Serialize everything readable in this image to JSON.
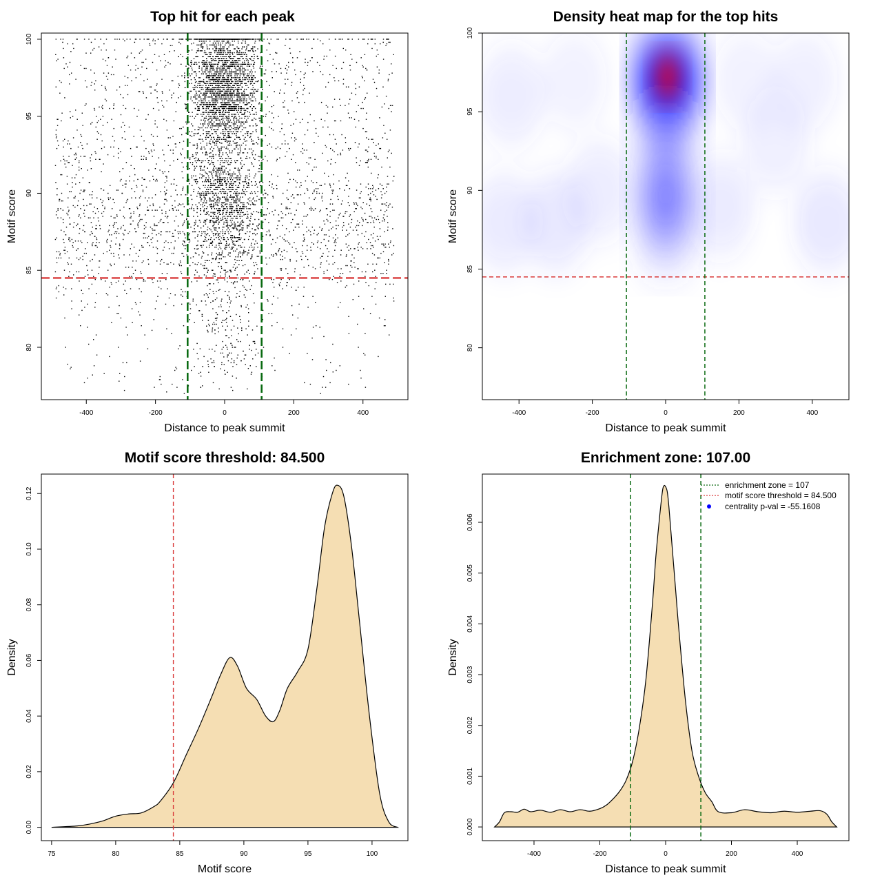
{
  "chart_data": [
    {
      "type": "scatter",
      "title": "Top hit for each peak",
      "xlabel": "Distance to peak summit",
      "ylabel": "Motif score",
      "xlim": [
        -530,
        530
      ],
      "ylim": [
        76.6,
        100.4
      ],
      "x_ticks": [
        "-400",
        "-200",
        "0",
        "200",
        "400"
      ],
      "y_ticks": [
        "80",
        "85",
        "90",
        "95",
        "100"
      ],
      "hline": 84.5,
      "vlines": [
        -107,
        107
      ],
      "hline_color": "#d93a3a",
      "vline_color": "#0a6b12",
      "point_color": "#000000",
      "points_summary": {
        "approx_count": 7000,
        "x_range": [
          -490,
          490
        ],
        "y_range": [
          77,
          100
        ],
        "dense_region": "between -107 and 107, scores 86 to 100"
      }
    },
    {
      "type": "heatmap",
      "title": "Density heat map for the top hits",
      "xlabel": "Distance to peak summit",
      "ylabel": "Motif score",
      "xlim": [
        -500,
        500
      ],
      "ylim": [
        76.7,
        100
      ],
      "x_ticks": [
        "-400",
        "-200",
        "0",
        "200",
        "400"
      ],
      "y_ticks": [
        "80",
        "85",
        "90",
        "95",
        "100"
      ],
      "hline": 84.5,
      "vlines": [
        -107,
        107
      ],
      "colors": [
        "#ffffff",
        "#0000ff",
        "#ff0000"
      ],
      "peak": {
        "x": 5,
        "y": 97.2
      }
    },
    {
      "type": "area",
      "title": "Motif score threshold: 84.500",
      "xlabel": "Motif score",
      "ylabel": "Density",
      "xlim": [
        74.2,
        102.8
      ],
      "ylim": [
        -0.0048,
        0.127
      ],
      "x_ticks": [
        "75",
        "80",
        "85",
        "90",
        "95",
        "100"
      ],
      "y_ticks": [
        "0.00",
        "0.02",
        "0.04",
        "0.06",
        "0.08",
        "0.10",
        "0.12"
      ],
      "vline": 84.5,
      "fill": "#f5deb3",
      "x": [
        75,
        77,
        78,
        79,
        80,
        81,
        82,
        83,
        83.5,
        84.5,
        85.5,
        86.5,
        87.5,
        88.2,
        88.9,
        89.5,
        90.2,
        91,
        91.7,
        92.3,
        92.8,
        93.4,
        94.2,
        95,
        95.7,
        96.3,
        96.9,
        97.3,
        97.8,
        98.4,
        99,
        99.8,
        100.6,
        101.3,
        102
      ],
      "y": [
        0,
        0.0005,
        0.0012,
        0.0023,
        0.004,
        0.0048,
        0.0052,
        0.0075,
        0.0095,
        0.016,
        0.026,
        0.036,
        0.047,
        0.055,
        0.061,
        0.058,
        0.05,
        0.046,
        0.04,
        0.038,
        0.042,
        0.05,
        0.056,
        0.064,
        0.086,
        0.108,
        0.12,
        0.123,
        0.119,
        0.101,
        0.075,
        0.04,
        0.012,
        0.002,
        0
      ]
    },
    {
      "type": "area",
      "title": "Enrichment zone: 107.00",
      "xlabel": "Distance to peak summit",
      "ylabel": "Density",
      "xlim": [
        -557,
        557
      ],
      "ylim": [
        -0.00027,
        0.00695
      ],
      "x_ticks": [
        "-400",
        "-200",
        "0",
        "200",
        "400"
      ],
      "y_ticks": [
        "0.000",
        "0.001",
        "0.002",
        "0.003",
        "0.004",
        "0.005",
        "0.006"
      ],
      "vlines": [
        -107,
        107
      ],
      "fill": "#f5deb3",
      "x": [
        -520,
        -505,
        -490,
        -470,
        -450,
        -430,
        -410,
        -380,
        -350,
        -320,
        -290,
        -260,
        -230,
        -200,
        -180,
        -160,
        -140,
        -120,
        -100,
        -80,
        -60,
        -40,
        -30,
        -20,
        -10,
        -5,
        0,
        5,
        10,
        20,
        30,
        40,
        60,
        80,
        100,
        120,
        140,
        160,
        200,
        240,
        280,
        320,
        360,
        400,
        440,
        470,
        490,
        505,
        520
      ],
      "y": [
        0,
        0.0001,
        0.00028,
        0.0003,
        0.00029,
        0.00035,
        0.0003,
        0.00033,
        0.00029,
        0.00034,
        0.0003,
        0.00034,
        0.00031,
        0.00036,
        0.00043,
        0.00055,
        0.0007,
        0.00092,
        0.0013,
        0.00195,
        0.0029,
        0.0044,
        0.0053,
        0.006,
        0.0066,
        0.00672,
        0.0067,
        0.0066,
        0.0063,
        0.0055,
        0.0047,
        0.0039,
        0.0025,
        0.0015,
        0.001,
        0.00068,
        0.0005,
        0.0003,
        0.00028,
        0.00034,
        0.0003,
        0.00028,
        0.00031,
        0.00029,
        0.00031,
        0.00032,
        0.00025,
        0.0001,
        0
      ],
      "legend": {
        "position": "top-right",
        "entries": [
          {
            "label": "enrichment zone = 107",
            "color": "#0a6b12",
            "style": "dotted-line"
          },
          {
            "label": "motif score threshold = 84.500",
            "color": "#d93a3a",
            "style": "dotted-line"
          },
          {
            "label": "centrality p-val = -55.1608",
            "color": "#0000ff",
            "style": "point"
          }
        ]
      }
    }
  ]
}
